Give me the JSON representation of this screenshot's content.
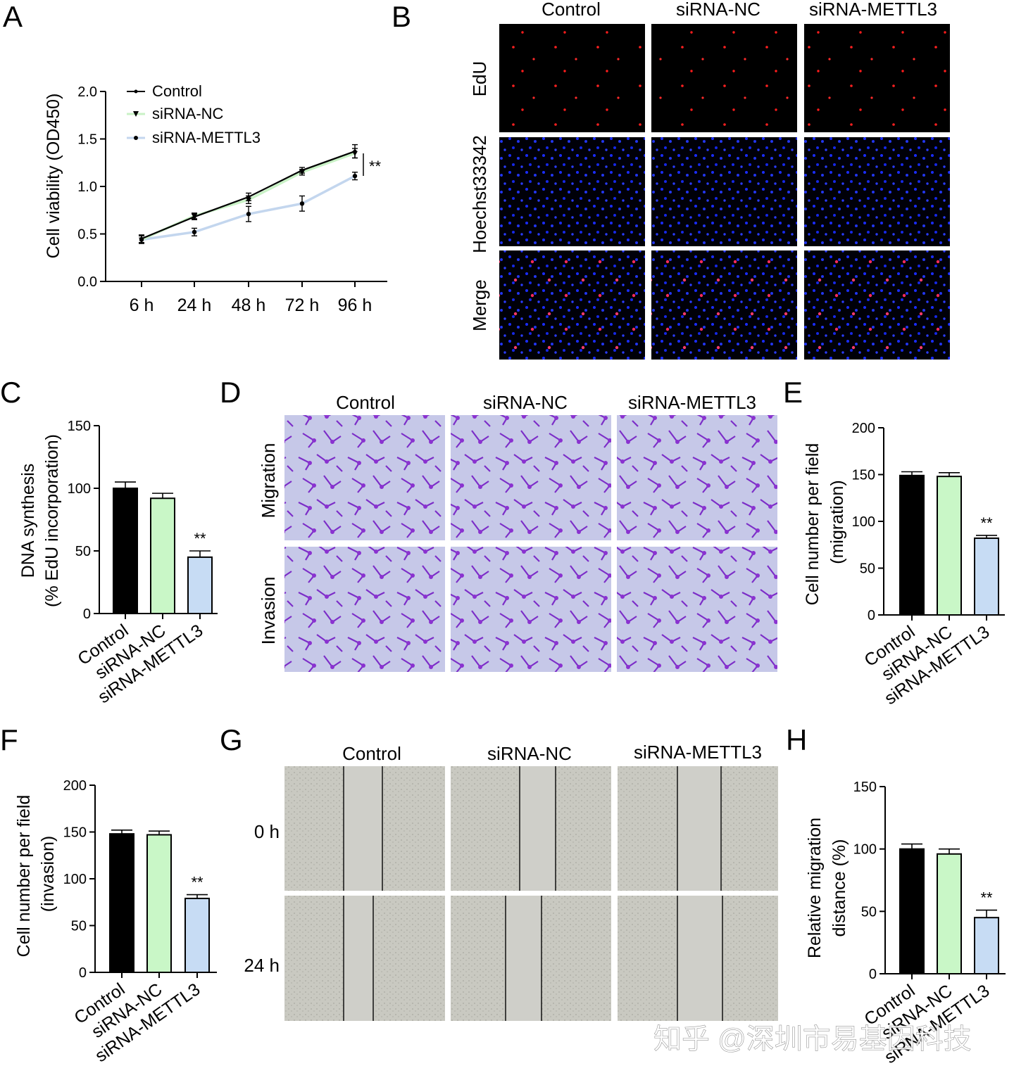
{
  "panels": {
    "A": {
      "label": "A",
      "chart_data": {
        "type": "line",
        "title": "",
        "ylabel": "Cell viability (OD450)",
        "xlabel": "",
        "categories": [
          "6 h",
          "24 h",
          "48 h",
          "72 h",
          "96 h"
        ],
        "ylim": [
          0,
          2.0
        ],
        "yticks": [
          "0.0",
          "0.5",
          "1.0",
          "1.5",
          "2.0"
        ],
        "series": [
          {
            "name": "Control",
            "color": "#000000",
            "values": [
              0.45,
              0.68,
              0.89,
              1.17,
              1.37
            ],
            "errors": [
              0.04,
              0.03,
              0.04,
              0.03,
              0.07
            ]
          },
          {
            "name": "siRNA-NC",
            "color": "#c9f2c6",
            "values": [
              0.44,
              0.69,
              0.86,
              1.15,
              1.35
            ],
            "errors": [
              0.04,
              0.03,
              0.04,
              0.03,
              0.05
            ]
          },
          {
            "name": "siRNA-METTL3",
            "color": "#c3d6ee",
            "values": [
              0.44,
              0.52,
              0.71,
              0.82,
              1.11
            ],
            "errors": [
              0.04,
              0.04,
              0.08,
              0.08,
              0.04
            ]
          }
        ],
        "annotation": "**"
      }
    },
    "B": {
      "label": "B",
      "columns": [
        "Control",
        "siRNA-NC",
        "siRNA-METTL3"
      ],
      "rows": [
        "EdU",
        "Hoechst33342",
        "Merge"
      ]
    },
    "C": {
      "label": "C",
      "chart_data": {
        "type": "bar",
        "title": "",
        "ylabel_lines": [
          "DNA synthesis",
          "(% EdU incorporation)"
        ],
        "categories": [
          "Control",
          "siRNA-NC",
          "siRNA-METTL3"
        ],
        "values": [
          100,
          92,
          45
        ],
        "errors": [
          5,
          4,
          5
        ],
        "colors": [
          "#000000",
          "#c9f7c7",
          "#c7dcf4"
        ],
        "ylim": [
          0,
          150
        ],
        "yticks": [
          "0",
          "50",
          "100",
          "150"
        ],
        "annotations": [
          "",
          "",
          "**"
        ]
      }
    },
    "D": {
      "label": "D",
      "columns": [
        "Control",
        "siRNA-NC",
        "siRNA-METTL3"
      ],
      "rows": [
        "Migration",
        "Invasion"
      ]
    },
    "E": {
      "label": "E",
      "chart_data": {
        "type": "bar",
        "title": "",
        "ylabel_lines": [
          "Cell number per field",
          "(migration)"
        ],
        "categories": [
          "Control",
          "siRNA-NC",
          "siRNA-METTL3"
        ],
        "values": [
          149,
          148,
          82
        ],
        "errors": [
          4,
          4,
          3
        ],
        "colors": [
          "#000000",
          "#c9f7c7",
          "#c7dcf4"
        ],
        "ylim": [
          0,
          200
        ],
        "yticks": [
          "0",
          "50",
          "100",
          "150",
          "200"
        ],
        "annotations": [
          "",
          "",
          "**"
        ]
      }
    },
    "F": {
      "label": "F",
      "chart_data": {
        "type": "bar",
        "title": "",
        "ylabel_lines": [
          "Cell number per field",
          "(invasion)"
        ],
        "categories": [
          "Control",
          "siRNA-NC",
          "siRNA-METTL3"
        ],
        "values": [
          148,
          147,
          79
        ],
        "errors": [
          4,
          4,
          4
        ],
        "colors": [
          "#000000",
          "#c9f7c7",
          "#c7dcf4"
        ],
        "ylim": [
          0,
          200
        ],
        "yticks": [
          "0",
          "50",
          "100",
          "150",
          "200"
        ],
        "annotations": [
          "",
          "",
          "**"
        ]
      }
    },
    "G": {
      "label": "G",
      "columns": [
        "Control",
        "siRNA-NC",
        "siRNA-METTL3"
      ],
      "rows": [
        "0 h",
        "24 h"
      ]
    },
    "H": {
      "label": "H",
      "chart_data": {
        "type": "bar",
        "title": "",
        "ylabel_lines": [
          "Relative migration",
          "distance (%)"
        ],
        "categories": [
          "Control",
          "siRNA-NC",
          "siRNA-METTL3"
        ],
        "values": [
          100,
          96,
          45
        ],
        "errors": [
          4,
          4,
          6
        ],
        "colors": [
          "#000000",
          "#c9f7c7",
          "#c7dcf4"
        ],
        "ylim": [
          0,
          150
        ],
        "yticks": [
          "0",
          "50",
          "100",
          "150"
        ],
        "annotations": [
          "",
          "",
          "**"
        ]
      }
    }
  },
  "watermark": "知乎 @深圳市易基因科技"
}
